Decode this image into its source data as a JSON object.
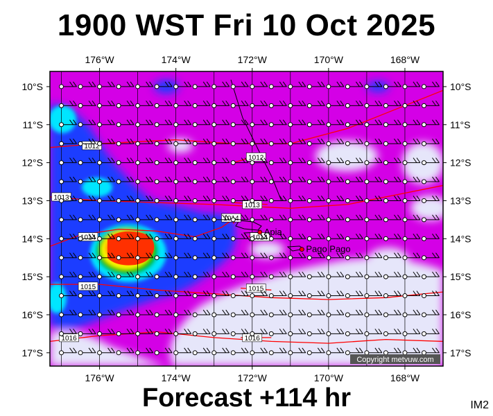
{
  "title": "1900 WST Fri 10 Oct 2025",
  "forecast_label": "Forecast +114 hr",
  "image_code": "IM2",
  "copyright": "Copyright metvuw.com",
  "colors": {
    "background_field": "#d400e6",
    "low_field": "#e6e6fa",
    "blue": "#1a3cff",
    "cyan": "#00e6ff",
    "green": "#00c000",
    "yellow": "#ffff00",
    "red_core": "#ff3000",
    "isobar": "#ff0000",
    "coast": "#000000"
  },
  "axes": {
    "longitude_labels": [
      "176°W",
      "174°W",
      "172°W",
      "170°W",
      "168°W"
    ],
    "longitude_values": [
      -176,
      -174,
      -172,
      -170,
      -168
    ],
    "latitude_labels": [
      "10°S",
      "11°S",
      "12°S",
      "13°S",
      "14°S",
      "15°S",
      "16°S",
      "17°S"
    ],
    "latitude_values": [
      -10,
      -11,
      -12,
      -13,
      -14,
      -15,
      -16,
      -17
    ],
    "lon_range": [
      -177.3,
      -167.0
    ],
    "lat_range": [
      -9.6,
      -17.35
    ]
  },
  "isobars": [
    {
      "label": "1012",
      "points": [
        [
          -177.3,
          -11.6
        ],
        [
          -176,
          -11.5
        ],
        [
          -174,
          -11.4
        ],
        [
          -172.5,
          -11.5
        ],
        [
          -171,
          -11.5
        ],
        [
          -169.5,
          -11.1
        ],
        [
          -168.5,
          -10.7
        ],
        [
          -167,
          -10.1
        ]
      ],
      "label_at": [
        -176.2,
        -11.55
      ]
    },
    {
      "label": "1012",
      "points": [
        [
          -172.5,
          -12.0
        ],
        [
          -171.8,
          -11.8
        ]
      ],
      "label_at": [
        -171.9,
        -11.85
      ]
    },
    {
      "label": "1013",
      "points": [
        [
          -177.3,
          -12.9
        ],
        [
          -176,
          -13.0
        ],
        [
          -174.5,
          -13.05
        ],
        [
          -173,
          -13.1
        ],
        [
          -172,
          -13.15
        ],
        [
          -171,
          -13.2
        ],
        [
          -169.5,
          -13.1
        ],
        [
          -168,
          -12.8
        ],
        [
          -167,
          -12.6
        ]
      ],
      "label_at": [
        -177.0,
        -12.9
      ]
    },
    {
      "label": "1013",
      "points": [
        [
          -172.5,
          -13.05
        ],
        [
          -171.6,
          -13.1
        ]
      ],
      "label_at": [
        -172.0,
        -13.1
      ]
    },
    {
      "label": "1014",
      "points": [
        [
          -177.3,
          -14.2
        ],
        [
          -176.5,
          -13.9
        ],
        [
          -175.5,
          -13.75
        ],
        [
          -174.5,
          -13.8
        ],
        [
          -173.5,
          -13.95
        ],
        [
          -172.8,
          -13.7
        ],
        [
          -172.3,
          -13.35
        ]
      ],
      "label_at": [
        -176.3,
        -13.95
      ]
    },
    {
      "label": "1014",
      "points": [
        [
          -172.5,
          -13.6
        ],
        [
          -172.3,
          -13.35
        ]
      ],
      "label_at": [
        -172.55,
        -13.45
      ]
    },
    {
      "label": "1014",
      "points": [
        [
          -172.1,
          -13.95
        ],
        [
          -171.6,
          -13.85
        ]
      ],
      "label_at": [
        -171.8,
        -13.95
      ]
    },
    {
      "label": "1015",
      "points": [
        [
          -177.3,
          -15.2
        ],
        [
          -176,
          -15.2
        ],
        [
          -174.5,
          -15.35
        ],
        [
          -173,
          -15.45
        ],
        [
          -171.5,
          -15.55
        ],
        [
          -170,
          -15.6
        ],
        [
          -168.5,
          -15.55
        ],
        [
          -167,
          -15.4
        ]
      ],
      "label_at": [
        -176.3,
        -15.25
      ]
    },
    {
      "label": "1015",
      "points": [
        [
          -172.3,
          -15.3
        ],
        [
          -171.5,
          -15.35
        ]
      ],
      "label_at": [
        -171.9,
        -15.3
      ]
    },
    {
      "label": "1016",
      "points": [
        [
          -177.3,
          -16.7
        ],
        [
          -176,
          -16.55
        ],
        [
          -174.5,
          -16.45
        ],
        [
          -173,
          -16.6
        ],
        [
          -171.5,
          -16.7
        ],
        [
          -170,
          -16.75
        ],
        [
          -168.5,
          -16.65
        ],
        [
          -167,
          -16.7
        ]
      ],
      "label_at": [
        -176.8,
        -16.6
      ]
    },
    {
      "label": "1016",
      "points": [
        [
          -172.3,
          -16.6
        ],
        [
          -171.5,
          -16.6
        ]
      ],
      "label_at": [
        -172.0,
        -16.6
      ]
    }
  ],
  "cities": [
    {
      "name": "Apia",
      "lon": -171.8,
      "lat": -13.83
    },
    {
      "name": "Pago Pago",
      "lon": -170.7,
      "lat": -14.28
    }
  ],
  "wind_grid": {
    "lon_start": -177.0,
    "lon_step": 0.5,
    "lon_count": 20,
    "lat_start": -10.0,
    "lat_step": 0.5,
    "lat_count": 15
  }
}
